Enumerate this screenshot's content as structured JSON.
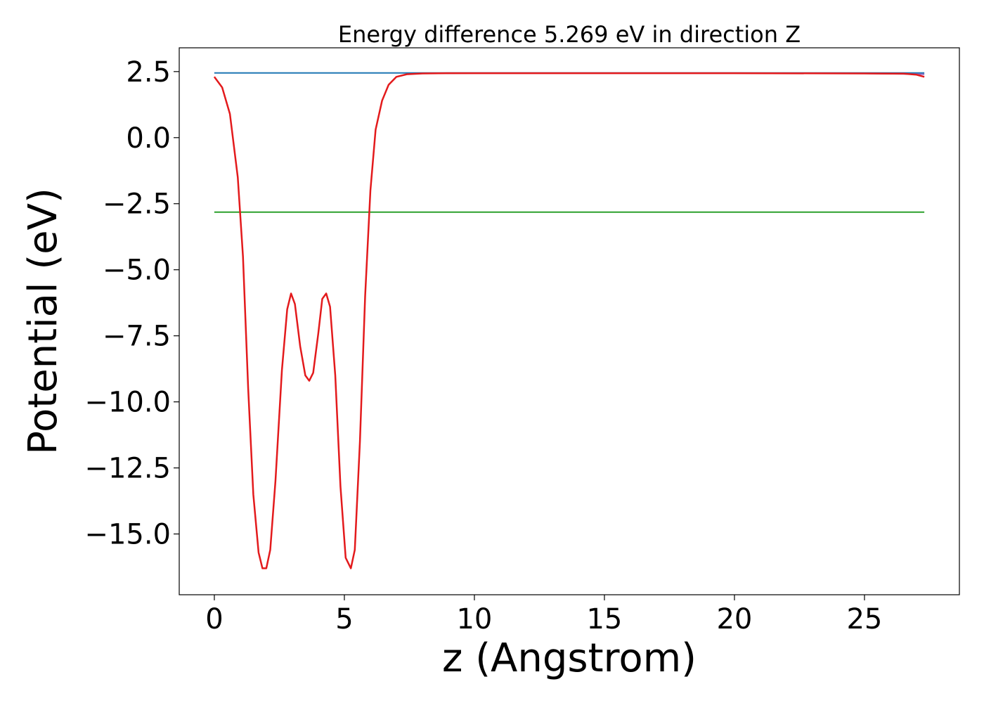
{
  "chart_data": {
    "type": "line",
    "title": "Energy difference 5.269 eV in direction Z",
    "xlabel": "z (Angstrom)",
    "ylabel": "Potential (eV)",
    "xlim": [
      -1.35,
      28.65
    ],
    "ylim": [
      -17.3,
      3.4
    ],
    "x_ticks": [
      0,
      5,
      10,
      15,
      20,
      25
    ],
    "x_tick_labels": [
      "0",
      "5",
      "10",
      "15",
      "20",
      "25"
    ],
    "y_ticks": [
      2.5,
      0.0,
      -2.5,
      -5.0,
      -7.5,
      -10.0,
      -12.5,
      -15.0
    ],
    "y_tick_labels": [
      "2.5",
      "0.0",
      "−2.5",
      "−5.0",
      "−7.5",
      "−10.0",
      "−12.5",
      "−15.0"
    ],
    "grid": false,
    "series": [
      {
        "color": "#1f77b4",
        "x": [
          0,
          27.3
        ],
        "y": [
          2.45,
          2.45
        ]
      },
      {
        "color": "#2ca02c",
        "x": [
          0,
          27.3
        ],
        "y": [
          -2.82,
          -2.82
        ]
      },
      {
        "color": "#9467bd",
        "x": [
          8.0,
          10.0,
          15.0,
          20.0,
          25.0,
          27.3
        ],
        "y": [
          2.43,
          2.44,
          2.44,
          2.44,
          2.43,
          2.4
        ]
      },
      {
        "color": "#e31a1c",
        "x": [
          0.0,
          0.3,
          0.6,
          0.9,
          1.1,
          1.3,
          1.5,
          1.7,
          1.85,
          2.0,
          2.15,
          2.35,
          2.6,
          2.8,
          2.95,
          3.1,
          3.3,
          3.5,
          3.65,
          3.8,
          4.0,
          4.15,
          4.3,
          4.45,
          4.65,
          4.85,
          5.05,
          5.25,
          5.4,
          5.6,
          5.8,
          6.0,
          6.2,
          6.45,
          6.7,
          7.0,
          7.4,
          8.0,
          9.0,
          10.0,
          15.0,
          20.0,
          25.0,
          26.5,
          27.0,
          27.3
        ],
        "y": [
          2.3,
          1.9,
          0.9,
          -1.5,
          -4.5,
          -9.5,
          -13.5,
          -15.7,
          -16.3,
          -16.3,
          -15.6,
          -13.0,
          -8.8,
          -6.5,
          -5.9,
          -6.3,
          -7.9,
          -9.0,
          -9.2,
          -8.9,
          -7.4,
          -6.1,
          -5.9,
          -6.4,
          -9.0,
          -13.2,
          -15.9,
          -16.3,
          -15.6,
          -11.5,
          -6.0,
          -2.0,
          0.3,
          1.4,
          2.0,
          2.3,
          2.4,
          2.43,
          2.44,
          2.44,
          2.44,
          2.44,
          2.43,
          2.42,
          2.38,
          2.3
        ]
      }
    ]
  }
}
